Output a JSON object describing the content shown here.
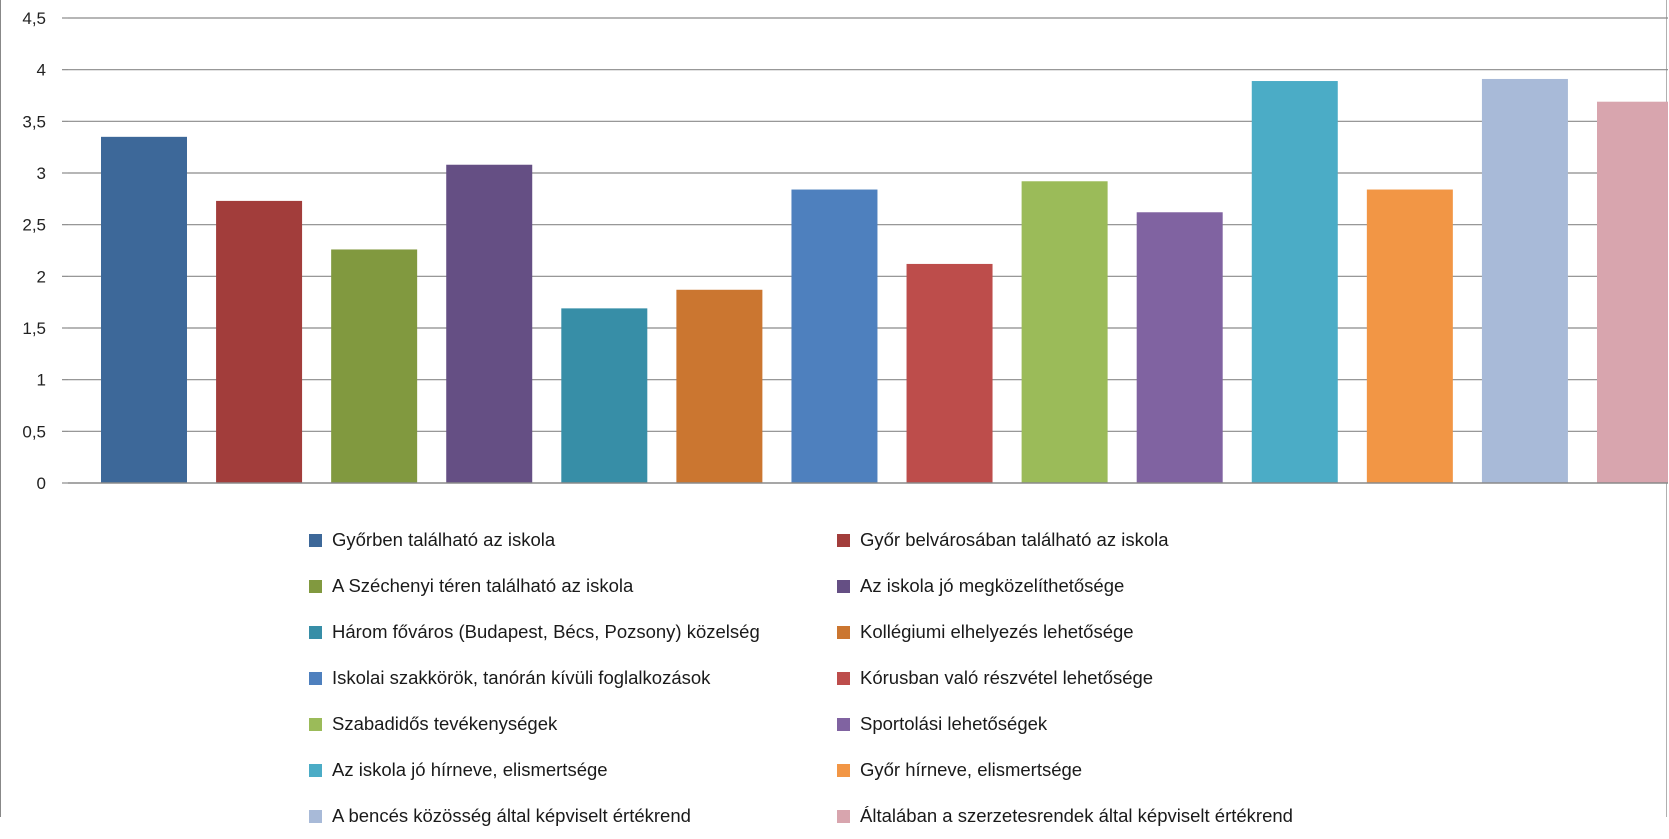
{
  "chart_data": {
    "type": "bar",
    "title": "",
    "xlabel": "",
    "ylabel": "",
    "ylim": [
      0,
      4.5
    ],
    "yticks": [
      "0",
      "0,5",
      "1",
      "1,5",
      "2",
      "2,5",
      "3",
      "3,5",
      "4",
      "4,5"
    ],
    "grid": true,
    "legend_position": "bottom",
    "categories": [
      "Győrben található az iskola",
      "Győr belvárosában található az iskola",
      "A Széchenyi téren található az iskola",
      "Az iskola jó megközelíthetősége",
      "Három főváros (Budapest, Bécs, Pozsony) közelség",
      "Kollégiumi elhelyezés lehetősége",
      "Iskolai szakkörök, tanórán kívüli foglalkozások",
      "Kórusban való részvétel lehetősége",
      "Szabadidős tevékenységek",
      "Sportolási lehetőségek",
      "Az iskola jó hírneve, elismertsége",
      "Győr hírneve, elismertsége",
      "A bencés közösség által képviselt értékrend",
      "Általában a szerzetesrendek által képviselt értékrend"
    ],
    "values": [
      3.35,
      2.73,
      2.26,
      3.08,
      1.69,
      1.87,
      2.84,
      2.12,
      2.92,
      2.62,
      3.89,
      2.84,
      3.91,
      3.69
    ],
    "colors": [
      "#3d6899",
      "#a23d3b",
      "#81993f",
      "#654f84",
      "#378ea7",
      "#cb7630",
      "#4e80be",
      "#bd4d4b",
      "#9bbb59",
      "#8063a1",
      "#4bacc6",
      "#f29645",
      "#a8bad8",
      "#d8a5ae"
    ]
  }
}
